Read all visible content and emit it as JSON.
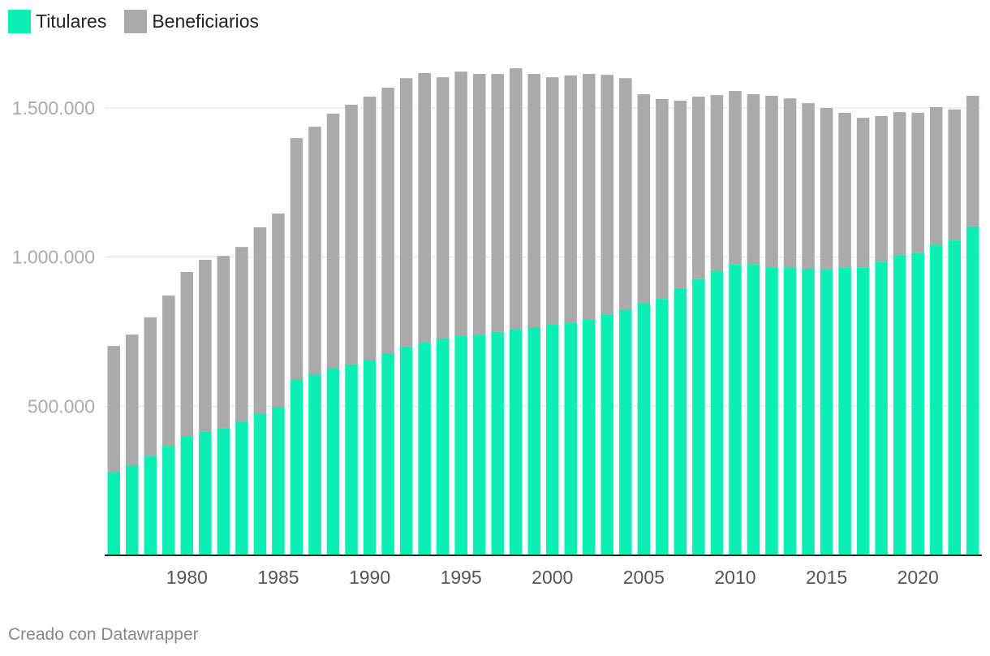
{
  "chart_data": {
    "type": "bar",
    "stacked": true,
    "title": "",
    "xlabel": "",
    "ylabel": "",
    "legend_position": "top-left",
    "grid": true,
    "categories": [
      1976,
      1977,
      1978,
      1979,
      1980,
      1981,
      1982,
      1983,
      1984,
      1985,
      1986,
      1987,
      1988,
      1989,
      1990,
      1991,
      1992,
      1993,
      1994,
      1995,
      1996,
      1997,
      1998,
      1999,
      2000,
      2001,
      2002,
      2003,
      2004,
      2005,
      2006,
      2007,
      2008,
      2009,
      2010,
      2011,
      2012,
      2013,
      2014,
      2015,
      2016,
      2017,
      2018,
      2019,
      2020,
      2021,
      2022,
      2023
    ],
    "series": [
      {
        "name": "Titulares",
        "color": "#0bf0b2",
        "values": [
          280000,
          302000,
          332000,
          367000,
          400000,
          414000,
          425000,
          449000,
          476000,
          498000,
          588000,
          607000,
          626000,
          640000,
          656000,
          678000,
          700000,
          713000,
          727000,
          735000,
          740000,
          749000,
          757000,
          765000,
          773000,
          781000,
          792000,
          808000,
          825000,
          844000,
          860000,
          896000,
          926000,
          953000,
          975000,
          975000,
          966000,
          966000,
          961000,
          958000,
          964000,
          964000,
          985000,
          1007000,
          1013000,
          1040000,
          1056000,
          1103000
        ]
      },
      {
        "name": "Beneficiarios",
        "color": "#aaaaaa",
        "values": [
          422000,
          438000,
          466000,
          504000,
          550000,
          577000,
          579000,
          585000,
          624000,
          648000,
          811000,
          830000,
          855000,
          871000,
          882000,
          890000,
          900000,
          904000,
          876000,
          887000,
          874000,
          865000,
          876000,
          849000,
          830000,
          828000,
          822000,
          803000,
          775000,
          702000,
          670000,
          628000,
          612000,
          590000,
          582000,
          571000,
          575000,
          566000,
          555000,
          542000,
          520000,
          503000,
          488000,
          479000,
          471000,
          463000,
          439000,
          438000
        ]
      }
    ],
    "ylim": [
      0,
      1650000
    ],
    "y_ticks": [
      500000,
      1000000,
      1500000
    ],
    "y_tick_labels": [
      "500.000",
      "1.000.000",
      "1.500.000"
    ],
    "x_ticks": [
      1980,
      1985,
      1990,
      1995,
      2000,
      2005,
      2010,
      2015,
      2020
    ],
    "x_tick_labels": [
      "1980",
      "1985",
      "1990",
      "1995",
      "2000",
      "2005",
      "2010",
      "2015",
      "2020"
    ]
  },
  "footer": {
    "credit": "Creado con Datawrapper"
  }
}
